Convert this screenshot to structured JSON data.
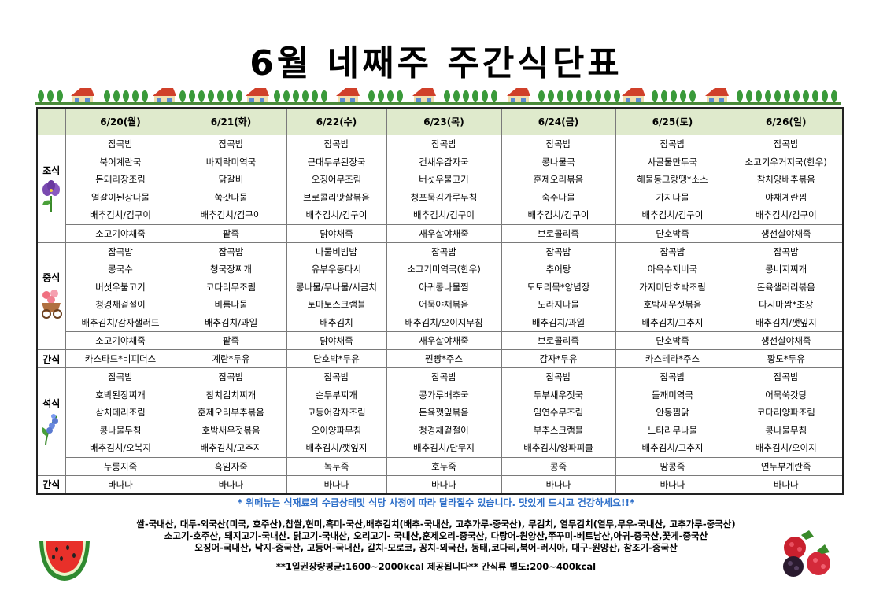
{
  "title": "6월 네째주 주간식단표",
  "days": [
    "6/20(월)",
    "6/21(화)",
    "6/22(수)",
    "6/23(목)",
    "6/24(금)",
    "6/25(토)",
    "6/26(일)"
  ],
  "meals": {
    "breakfast": {
      "label": "조식",
      "rows": [
        [
          "잡곡밥",
          "잡곡밥",
          "잡곡밥",
          "잡곡밥",
          "잡곡밥",
          "잡곡밥",
          "잡곡밥"
        ],
        [
          "북어계란국",
          "바지락미역국",
          "근대두부된장국",
          "건새우감자국",
          "콩나물국",
          "사골물만두국",
          "소고기우거지국(한우)"
        ],
        [
          "돈돼리장조림",
          "닭갈비",
          "오징어무조림",
          "버섯우불고기",
          "훈제오리볶음",
          "해물동그랑땡*소스",
          "참치양배추볶음"
        ],
        [
          "얼갈이된장나물",
          "쑥갓나물",
          "브로콜리맛살볶음",
          "청포묵김가루무침",
          "숙주나물",
          "가지나물",
          "야채계란찜"
        ],
        [
          "배추김치/김구이",
          "배추김치/김구이",
          "배추김치/김구이",
          "배추김치/김구이",
          "배추김치/김구이",
          "배추김치/김구이",
          "배추김치/김구이"
        ]
      ],
      "porridge": [
        "소고기야채죽",
        "팥죽",
        "닭야채죽",
        "새우살야채죽",
        "브로콜리죽",
        "단호박죽",
        "생선살야채죽"
      ]
    },
    "lunch": {
      "label": "중식",
      "rows": [
        [
          "잡곡밥",
          "잡곡밥",
          "나물비빔밥",
          "잡곡밥",
          "잡곡밥",
          "잡곡밥",
          "잡곡밥"
        ],
        [
          "콩국수",
          "청국장찌개",
          "유부우동다시",
          "소고기미역국(한우)",
          "추어탕",
          "아욱수제비국",
          "콩비지찌개"
        ],
        [
          "버섯우불고기",
          "코다리무조림",
          "콩나물/무나물/시금치",
          "아귀콩나물찜",
          "도토리묵*양념장",
          "가지미단호박조림",
          "돈육샐러리볶음"
        ],
        [
          "청경채겉절이",
          "비름나물",
          "토마토스크램블",
          "어묵야채볶음",
          "도라지나물",
          "호박새우젓볶음",
          "다시마쌈*초장"
        ],
        [
          "배추김치/감자샐러드",
          "배추김치/과일",
          "배추김치",
          "배추김치/오이지무침",
          "배추김치/과일",
          "배추김치/고추지",
          "배추김치/깻잎지"
        ]
      ],
      "porridge": [
        "소고기야채죽",
        "팥죽",
        "닭야채죽",
        "새우살야채죽",
        "브로콜리죽",
        "단호박죽",
        "생선살야채죽"
      ]
    },
    "snack1": {
      "label": "간식",
      "items": [
        "카스타드*비피더스",
        "계란*두유",
        "단호박*두유",
        "찐빵*주스",
        "감자*두유",
        "카스테라*주스",
        "황도*두유"
      ]
    },
    "dinner": {
      "label": "석식",
      "rows": [
        [
          "잡곡밥",
          "잡곡밥",
          "잡곡밥",
          "잡곡밥",
          "잡곡밥",
          "잡곡밥",
          "잡곡밥"
        ],
        [
          "호박된장찌개",
          "참치김치찌개",
          "순두부찌개",
          "콩가루배추국",
          "두부새우젓국",
          "들깨미역국",
          "어묵쑥갓탕"
        ],
        [
          "삼치데리조림",
          "훈제오리부추볶음",
          "고등어감자조림",
          "돈육깻잎볶음",
          "임연수무조림",
          "안동찜닭",
          "코다리양파조림"
        ],
        [
          "콩나물무침",
          "호박새우젓볶음",
          "오이양파무침",
          "청경채겉절이",
          "부추스크램블",
          "느타리무나물",
          "콩나물무침"
        ],
        [
          "배추김치/오복지",
          "배추김치/고추지",
          "배추김치/깻잎지",
          "배추김치/단무지",
          "배추김치/양파피클",
          "배추김치/고추지",
          "배추김치/오이지"
        ]
      ],
      "porridge": [
        "누룽지죽",
        "흑임자죽",
        "녹두죽",
        "호두죽",
        "콩죽",
        "땅콩죽",
        "연두부계란죽"
      ]
    },
    "snack2": {
      "label": "간식",
      "items": [
        "바나나",
        "바나나",
        "바나나",
        "바나나",
        "바나나",
        "바나나",
        "바나나"
      ]
    }
  },
  "notice": "* 위메뉴는 식재료의 수급상태및 식당 사정에 따라 달라질수 있습니다. 맛있게 드시고 건강하세요!!*",
  "origin": [
    "쌀-국내산, 대두-외국산(미국, 호주산),찹쌀,현미,흑미-국산,배추김치(배추-국내산, 고추가루-중국산), 무김치, 열무김치(열무,무우-국내산, 고추가루-중국산)",
    "소고기-호주산, 돼지고기-국내산. 닭고기-국내산, 오리고기- 국내산,훈제오리-중국산, 다랑어-원양산,쭈꾸미-베트남산,아귀-중국산,꽃게-중국산",
    "오징어-국내산, 낙지-중국산, 고등어-국내산, 갈치-모로코, 꽁치-외국산, 동태,코다리,북어-러시아, 대구-원양산, 참조기-중국산"
  ],
  "calorie": "**1일권장량평균:1600~2000kcal 제공됩니다** 간식류 별도:200~400kcal",
  "colors": {
    "header_bg": "#dfeacc",
    "notice": "#2e6fc9",
    "ground": "#4a8a3a"
  }
}
